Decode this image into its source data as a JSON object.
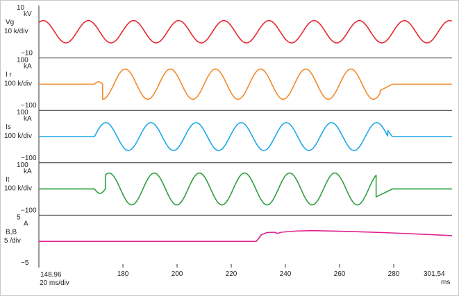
{
  "chart_data": [
    {
      "type": "line",
      "channel_label": "Vg",
      "unit_label": "kV",
      "scale_label": "10 k/div",
      "ticks": {
        "top": "10",
        "bottom": "−10"
      },
      "ylim": [
        -10,
        10
      ],
      "series": [
        {
          "color": "#e8262d",
          "segments": [
            {
              "kind": "sine",
              "from": 148.96,
              "to": 301.54,
              "mean": 0,
              "amp": 5.6,
              "period": 16.67,
              "phase_deg": 55
            }
          ]
        }
      ]
    },
    {
      "type": "line",
      "channel_label": "I r",
      "unit_label": "kA",
      "scale_label": "100 k/div",
      "ticks": {
        "top": "100",
        "bottom": "−100"
      },
      "ylim": [
        -100,
        100
      ],
      "series": [
        {
          "color": "#f28a2a",
          "segments": [
            {
              "kind": "flat",
              "from": 148.96,
              "to": 169.5,
              "value": 0
            },
            {
              "kind": "sine",
              "from": 169.5,
              "to": 172.5,
              "mean": 0,
              "amp": 12,
              "period": 6,
              "phase_deg": 0
            },
            {
              "kind": "sine",
              "from": 172.5,
              "to": 275.0,
              "mean": 0,
              "amp": 76,
              "period": 16.67,
              "phase_deg": -90
            },
            {
              "kind": "line",
              "from": 275.0,
              "to": 279.5,
              "v0": -32,
              "v1": 0
            },
            {
              "kind": "flat",
              "from": 279.5,
              "to": 301.54,
              "value": 0
            }
          ]
        }
      ]
    },
    {
      "type": "line",
      "channel_label": "Is",
      "unit_label": "kA",
      "scale_label": "100 k/div",
      "ticks": {
        "top": "100",
        "bottom": "−100"
      },
      "ylim": [
        -100,
        100
      ],
      "series": [
        {
          "color": "#1ca8e8",
          "segments": [
            {
              "kind": "flat",
              "from": 148.96,
              "to": 169.5,
              "value": 0
            },
            {
              "kind": "sine",
              "from": 169.5,
              "to": 277.8,
              "mean": 0,
              "amp": 70,
              "period": 16.67,
              "phase_deg": 0
            },
            {
              "kind": "line",
              "from": 277.8,
              "to": 279.5,
              "v0": 30,
              "v1": 0
            },
            {
              "kind": "flat",
              "from": 279.5,
              "to": 301.54,
              "value": 0
            }
          ]
        }
      ]
    },
    {
      "type": "line",
      "channel_label": "It",
      "unit_label": "kA",
      "scale_label": "100 k/div",
      "ticks": {
        "top": "100",
        "bottom": "−100"
      },
      "ylim": [
        -100,
        100
      ],
      "series": [
        {
          "color": "#2e9e3e",
          "segments": [
            {
              "kind": "flat",
              "from": 148.96,
              "to": 169.5,
              "value": 0
            },
            {
              "kind": "sine",
              "from": 169.5,
              "to": 173.5,
              "mean": 0,
              "amp": 22,
              "period": 8,
              "phase_deg": 180
            },
            {
              "kind": "sine",
              "from": 173.5,
              "to": 273.5,
              "mean": 0,
              "amp": 80,
              "period": 16.67,
              "phase_deg": 60
            },
            {
              "kind": "line",
              "from": 273.5,
              "to": 279.5,
              "v0": -40,
              "v1": 0
            },
            {
              "kind": "flat",
              "from": 279.5,
              "to": 301.54,
              "value": 0
            }
          ]
        }
      ]
    },
    {
      "type": "line",
      "channel_label": "B,B",
      "unit_label": "A",
      "scale_label": "5  /div",
      "ticks": {
        "top": "5",
        "bottom": "−5"
      },
      "ylim": [
        -5,
        5
      ],
      "series": [
        {
          "color": "#e0208f",
          "points": [
            [
              148.96,
              0
            ],
            [
              229.2,
              0
            ],
            [
              230.0,
              0.6
            ],
            [
              231.0,
              1.6
            ],
            [
              233.0,
              2.2
            ],
            [
              236.0,
              2.3
            ],
            [
              237.0,
              2.0
            ],
            [
              238.5,
              2.3
            ],
            [
              244.0,
              2.6
            ],
            [
              250.0,
              2.7
            ],
            [
              260.0,
              2.55
            ],
            [
              270.0,
              2.35
            ],
            [
              280.0,
              2.1
            ],
            [
              290.0,
              1.8
            ],
            [
              301.54,
              1.45
            ]
          ]
        }
      ]
    }
  ],
  "x_axis": {
    "start_label": "148,96",
    "scale_label": "20 ms/div",
    "ticks": [
      "180",
      "200",
      "220",
      "240",
      "260",
      "280"
    ],
    "end_label": "301,54",
    "unit_label": "ms",
    "range": [
      148.96,
      301.54
    ]
  }
}
